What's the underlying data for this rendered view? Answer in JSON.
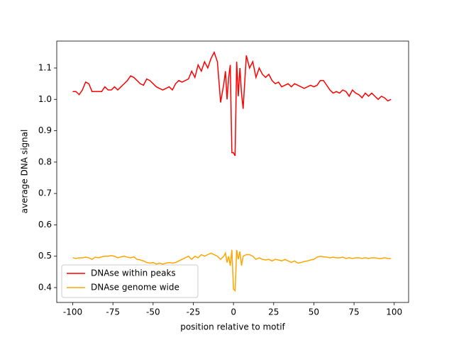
{
  "chart_data": {
    "type": "line",
    "xlabel": "position relative to motif",
    "ylabel": "average DNA signal",
    "x": [
      -100,
      -98,
      -96,
      -94,
      -92,
      -90,
      -88,
      -86,
      -84,
      -82,
      -80,
      -78,
      -76,
      -74,
      -72,
      -70,
      -68,
      -66,
      -64,
      -62,
      -60,
      -58,
      -56,
      -54,
      -52,
      -50,
      -48,
      -46,
      -44,
      -42,
      -40,
      -38,
      -36,
      -34,
      -32,
      -30,
      -28,
      -26,
      -24,
      -22,
      -20,
      -18,
      -16,
      -14,
      -12,
      -10,
      -8,
      -6,
      -5,
      -4,
      -3,
      -2,
      -1,
      0,
      1,
      2,
      3,
      4,
      5,
      6,
      8,
      10,
      12,
      14,
      16,
      18,
      20,
      22,
      24,
      26,
      28,
      30,
      32,
      34,
      36,
      38,
      40,
      42,
      44,
      46,
      48,
      50,
      52,
      54,
      56,
      58,
      60,
      62,
      64,
      66,
      68,
      70,
      72,
      74,
      76,
      78,
      80,
      82,
      84,
      86,
      88,
      90,
      92,
      94,
      96,
      98
    ],
    "series": [
      {
        "name": "DNAse within peaks",
        "color": "#ff0000",
        "values": [
          1.025,
          1.025,
          1.015,
          1.03,
          1.055,
          1.05,
          1.025,
          1.025,
          1.025,
          1.025,
          1.04,
          1.03,
          1.03,
          1.04,
          1.03,
          1.04,
          1.05,
          1.06,
          1.075,
          1.07,
          1.06,
          1.05,
          1.045,
          1.065,
          1.06,
          1.05,
          1.04,
          1.035,
          1.03,
          1.035,
          1.04,
          1.03,
          1.05,
          1.06,
          1.055,
          1.06,
          1.065,
          1.09,
          1.07,
          1.11,
          1.09,
          1.12,
          1.1,
          1.13,
          1.15,
          1.12,
          0.99,
          1.05,
          1.09,
          1.0,
          1.07,
          1.11,
          0.83,
          0.83,
          0.82,
          1.12,
          1.01,
          1.1,
          1.02,
          0.97,
          1.14,
          1.1,
          1.12,
          1.07,
          1.1,
          1.08,
          1.07,
          1.08,
          1.06,
          1.05,
          1.055,
          1.04,
          1.045,
          1.05,
          1.04,
          1.05,
          1.045,
          1.04,
          1.035,
          1.04,
          1.045,
          1.04,
          1.045,
          1.06,
          1.06,
          1.045,
          1.03,
          1.02,
          1.025,
          1.02,
          1.03,
          1.025,
          1.01,
          1.03,
          1.02,
          1.015,
          1.005,
          1.02,
          1.01,
          1.02,
          1.01,
          1.0,
          1.01,
          1.005,
          0.995,
          1.0
        ]
      },
      {
        "name": "DNAse genome wide",
        "color": "#ffa500",
        "values": [
          0.495,
          0.493,
          0.495,
          0.495,
          0.497,
          0.495,
          0.49,
          0.497,
          0.495,
          0.498,
          0.5,
          0.5,
          0.502,
          0.5,
          0.495,
          0.498,
          0.5,
          0.497,
          0.495,
          0.498,
          0.49,
          0.488,
          0.485,
          0.48,
          0.478,
          0.48,
          0.475,
          0.478,
          0.475,
          0.478,
          0.48,
          0.478,
          0.48,
          0.485,
          0.49,
          0.495,
          0.5,
          0.49,
          0.5,
          0.495,
          0.505,
          0.5,
          0.505,
          0.51,
          0.505,
          0.5,
          0.49,
          0.5,
          0.51,
          0.48,
          0.5,
          0.47,
          0.52,
          0.395,
          0.39,
          0.52,
          0.49,
          0.515,
          0.47,
          0.5,
          0.505,
          0.505,
          0.5,
          0.49,
          0.495,
          0.49,
          0.488,
          0.49,
          0.485,
          0.49,
          0.488,
          0.485,
          0.49,
          0.485,
          0.48,
          0.485,
          0.478,
          0.48,
          0.483,
          0.485,
          0.488,
          0.49,
          0.497,
          0.5,
          0.498,
          0.497,
          0.495,
          0.497,
          0.495,
          0.495,
          0.497,
          0.493,
          0.495,
          0.493,
          0.495,
          0.495,
          0.493,
          0.495,
          0.493,
          0.495,
          0.495,
          0.493,
          0.493,
          0.495,
          0.493,
          0.493
        ]
      }
    ],
    "xlim": [
      -109.95,
      108.95
    ],
    "ylim": [
      0.3526,
      1.1858
    ],
    "xticks": [
      -100,
      -75,
      -50,
      -25,
      0,
      25,
      50,
      75,
      100
    ],
    "yticks": [
      0.4,
      0.5,
      0.6,
      0.7,
      0.8,
      0.9,
      {
        "value": 1,
        "label": "1.0"
      },
      1.1
    ],
    "legend": "lower left"
  }
}
